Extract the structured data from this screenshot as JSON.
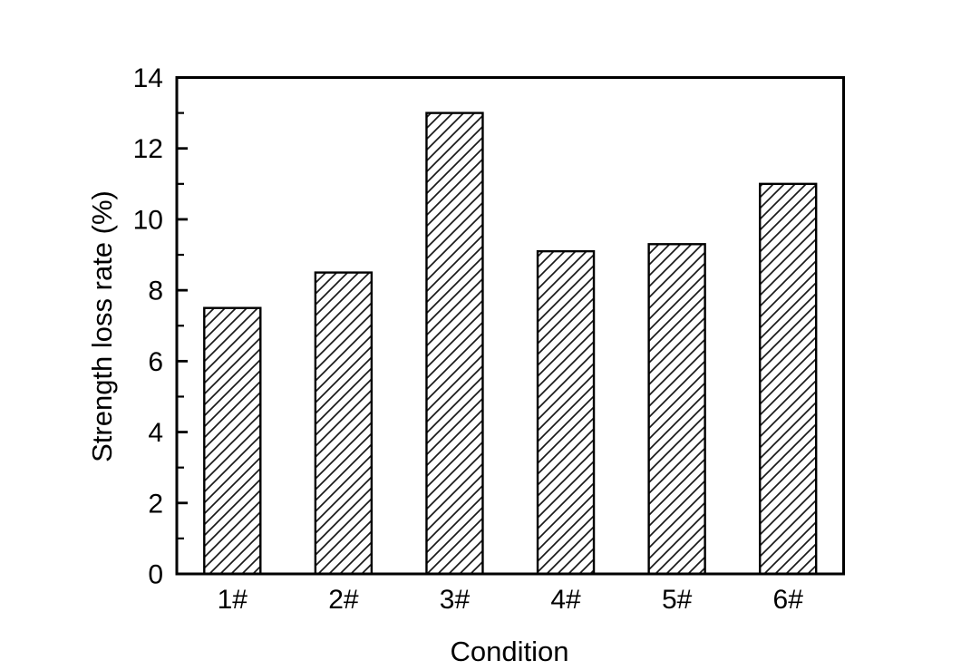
{
  "figure": {
    "background_color": "#ffffff",
    "axis_color": "#000000",
    "text_color": "#000000"
  },
  "chart_data": {
    "type": "bar",
    "title": "",
    "xlabel": "Condition",
    "ylabel": "Strength loss rate (%)",
    "categories": [
      "1#",
      "2#",
      "3#",
      "4#",
      "5#",
      "6#"
    ],
    "values": [
      7.5,
      8.5,
      13.0,
      9.1,
      9.3,
      11.0
    ],
    "ylim": [
      0,
      14
    ],
    "ytick_major": [
      0,
      2,
      4,
      6,
      8,
      10,
      12,
      14
    ],
    "ytick_minor": [
      1,
      3,
      5,
      7,
      9,
      11,
      13
    ],
    "grid": false,
    "legend": null,
    "frame": true,
    "ticks_direction": "in",
    "bar_fill_style": "diagonal-hatch",
    "bar_face_color": "#ffffff",
    "hatch_color": "#1a1a1a",
    "bar_edge_color": "#000000"
  }
}
